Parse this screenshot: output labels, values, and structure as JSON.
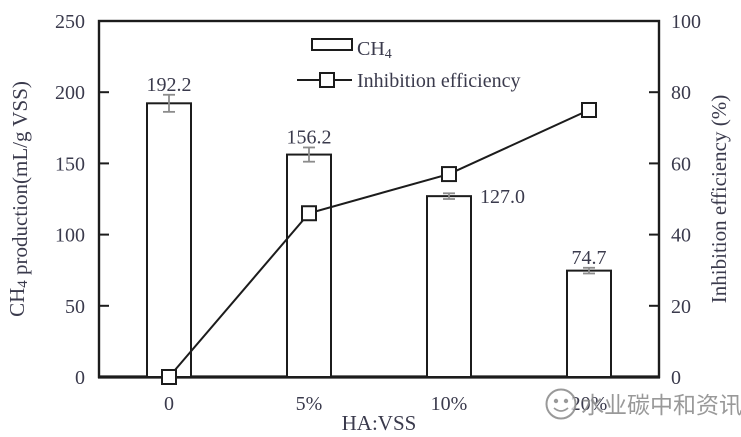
{
  "chart_data": {
    "type": "bar+line",
    "categories": [
      "0",
      "5%",
      "10%",
      "20%"
    ],
    "x_axis_label": "HA:VSS",
    "left_axis": {
      "label_parts": [
        "CH",
        {
          "sub": "4"
        },
        " production(mL/g VSS)"
      ],
      "min": 0,
      "max": 250,
      "ticks": [
        0,
        50,
        100,
        150,
        200,
        250
      ]
    },
    "right_axis": {
      "label_parts": [
        "Inhibition efficiency (%)"
      ],
      "min": 0,
      "max": 100,
      "ticks": [
        0,
        20,
        40,
        60,
        80,
        100
      ]
    },
    "bar_series": {
      "name_parts": [
        "CH",
        {
          "sub": "4"
        }
      ],
      "axis": "left",
      "values": [
        192.2,
        156.2,
        127.0,
        74.7
      ],
      "value_labels": [
        "192.2",
        "156.2",
        "127.0",
        "74.7"
      ],
      "value_label_side": [
        "top",
        "top",
        "right",
        "top"
      ],
      "error_bars": [
        6,
        5,
        2,
        2
      ]
    },
    "line_series": {
      "name_parts": [
        "Inhibition efficiency"
      ],
      "axis": "right",
      "values": [
        0,
        46,
        57,
        75
      ],
      "marker": "open-square"
    },
    "legend": {
      "position": "top-inside",
      "entries": [
        "CH4",
        "Inhibition efficiency"
      ]
    },
    "grid": false
  },
  "watermark": {
    "logo": "round-mascot-logo",
    "text": "水业碳中和资讯"
  },
  "colors": {
    "axis": "#1c1c1c",
    "text": "#3a3a4c",
    "bar_fill": "#ffffff",
    "bar_stroke": "#1c1c1c",
    "error_bar": "#8c8c8c",
    "line": "#1c1c1c",
    "marker_fill": "#ffffff",
    "watermark": "#8f8f8f"
  }
}
